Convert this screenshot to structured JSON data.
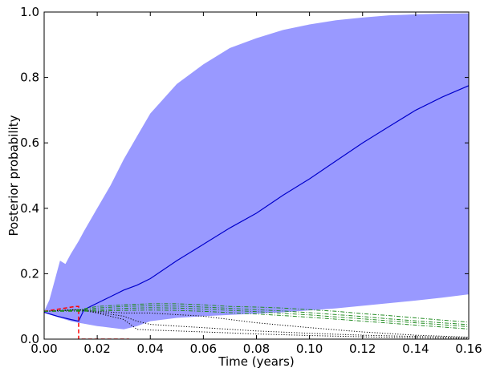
{
  "chart_data": {
    "type": "area",
    "title": "",
    "xlabel": "Time (years)",
    "ylabel": "Posterior probability",
    "xlim": [
      0.0,
      0.16
    ],
    "ylim": [
      0.0,
      1.0
    ],
    "xticks": [
      "0.00",
      "0.02",
      "0.04",
      "0.06",
      "0.08",
      "0.10",
      "0.12",
      "0.14",
      "0.16"
    ],
    "yticks": [
      "0.0",
      "0.2",
      "0.4",
      "0.6",
      "0.8",
      "1.0"
    ],
    "grid": false,
    "legend": "none",
    "band": {
      "color": "#9999ff",
      "x": [
        0.0,
        0.002,
        0.004,
        0.006,
        0.008,
        0.01,
        0.013,
        0.015,
        0.02,
        0.025,
        0.03,
        0.035,
        0.04,
        0.05,
        0.06,
        0.07,
        0.08,
        0.09,
        0.1,
        0.11,
        0.12,
        0.13,
        0.14,
        0.15,
        0.16
      ],
      "upper": [
        0.085,
        0.12,
        0.18,
        0.24,
        0.23,
        0.26,
        0.3,
        0.33,
        0.4,
        0.47,
        0.55,
        0.62,
        0.69,
        0.78,
        0.84,
        0.89,
        0.92,
        0.945,
        0.962,
        0.975,
        0.983,
        0.99,
        0.993,
        0.995,
        0.996
      ],
      "lower": [
        0.082,
        0.075,
        0.07,
        0.065,
        0.06,
        0.055,
        0.05,
        0.047,
        0.04,
        0.035,
        0.03,
        0.04,
        0.055,
        0.065,
        0.07,
        0.074,
        0.078,
        0.082,
        0.088,
        0.094,
        0.102,
        0.11,
        0.118,
        0.127,
        0.137
      ]
    },
    "series": [
      {
        "style": "solid",
        "color": "#0000cc",
        "x": [
          0.0,
          0.005,
          0.01,
          0.013,
          0.015,
          0.02,
          0.025,
          0.03,
          0.035,
          0.04,
          0.05,
          0.06,
          0.07,
          0.08,
          0.09,
          0.1,
          0.11,
          0.12,
          0.13,
          0.14,
          0.15,
          0.16
        ],
        "y": [
          0.082,
          0.07,
          0.06,
          0.055,
          0.09,
          0.11,
          0.13,
          0.15,
          0.165,
          0.185,
          0.24,
          0.29,
          0.34,
          0.385,
          0.44,
          0.49,
          0.545,
          0.6,
          0.65,
          0.7,
          0.74,
          0.775
        ]
      },
      {
        "style": "dashed",
        "color": "#ff0000",
        "x": [
          0.0,
          0.008,
          0.012,
          0.013,
          0.013,
          0.02,
          0.025,
          0.032
        ],
        "y": [
          0.085,
          0.095,
          0.1,
          0.1,
          0.0,
          0.0,
          0.0,
          0.0
        ]
      },
      {
        "style": "dotted",
        "color": "#000000",
        "x": [
          0.0,
          0.01,
          0.013,
          0.02,
          0.03,
          0.035,
          0.04,
          0.05,
          0.06,
          0.08,
          0.1,
          0.12,
          0.14,
          0.16
        ],
        "y": [
          0.085,
          0.088,
          0.09,
          0.082,
          0.07,
          0.055,
          0.045,
          0.04,
          0.035,
          0.025,
          0.018,
          0.012,
          0.008,
          0.005
        ]
      },
      {
        "style": "dotted",
        "color": "#000000",
        "x": [
          0.0,
          0.01,
          0.013,
          0.02,
          0.03,
          0.035,
          0.04,
          0.06,
          0.08,
          0.1,
          0.12,
          0.14,
          0.16
        ],
        "y": [
          0.085,
          0.09,
          0.09,
          0.08,
          0.06,
          0.03,
          0.028,
          0.022,
          0.016,
          0.011,
          0.007,
          0.004,
          0.002
        ]
      },
      {
        "style": "dotted",
        "color": "#000000",
        "x": [
          0.0,
          0.013,
          0.02,
          0.03,
          0.04,
          0.05,
          0.06,
          0.07,
          0.08,
          0.1,
          0.12,
          0.14,
          0.16
        ],
        "y": [
          0.085,
          0.09,
          0.085,
          0.08,
          0.08,
          0.075,
          0.07,
          0.06,
          0.05,
          0.035,
          0.022,
          0.012,
          0.006
        ]
      },
      {
        "style": "dashdot",
        "color": "#228b22",
        "x": [
          0.0,
          0.013,
          0.02,
          0.03,
          0.04,
          0.05,
          0.06,
          0.07,
          0.08,
          0.09,
          0.1,
          0.11,
          0.12,
          0.13,
          0.14,
          0.15,
          0.16
        ],
        "y": [
          0.085,
          0.09,
          0.1,
          0.105,
          0.108,
          0.108,
          0.105,
          0.1,
          0.098,
          0.095,
          0.09,
          0.085,
          0.078,
          0.072,
          0.065,
          0.058,
          0.052
        ]
      },
      {
        "style": "dashdot",
        "color": "#228b22",
        "x": [
          0.0,
          0.013,
          0.02,
          0.03,
          0.04,
          0.05,
          0.06,
          0.07,
          0.08,
          0.09,
          0.1,
          0.11,
          0.12,
          0.13,
          0.14,
          0.15,
          0.16
        ],
        "y": [
          0.085,
          0.088,
          0.095,
          0.1,
          0.102,
          0.101,
          0.098,
          0.094,
          0.09,
          0.086,
          0.081,
          0.075,
          0.069,
          0.062,
          0.056,
          0.05,
          0.044
        ]
      },
      {
        "style": "dashdot",
        "color": "#228b22",
        "x": [
          0.0,
          0.013,
          0.02,
          0.03,
          0.04,
          0.05,
          0.06,
          0.07,
          0.08,
          0.09,
          0.1,
          0.11,
          0.12,
          0.13,
          0.14,
          0.15,
          0.16
        ],
        "y": [
          0.085,
          0.086,
          0.09,
          0.094,
          0.096,
          0.095,
          0.092,
          0.088,
          0.084,
          0.079,
          0.074,
          0.068,
          0.062,
          0.056,
          0.05,
          0.044,
          0.038
        ]
      },
      {
        "style": "dashdot",
        "color": "#228b22",
        "x": [
          0.0,
          0.013,
          0.02,
          0.03,
          0.04,
          0.05,
          0.06,
          0.07,
          0.08,
          0.09,
          0.1,
          0.11,
          0.12,
          0.13,
          0.14,
          0.15,
          0.16
        ],
        "y": [
          0.085,
          0.085,
          0.086,
          0.088,
          0.089,
          0.088,
          0.085,
          0.081,
          0.077,
          0.072,
          0.067,
          0.061,
          0.055,
          0.049,
          0.043,
          0.037,
          0.031
        ]
      }
    ]
  }
}
